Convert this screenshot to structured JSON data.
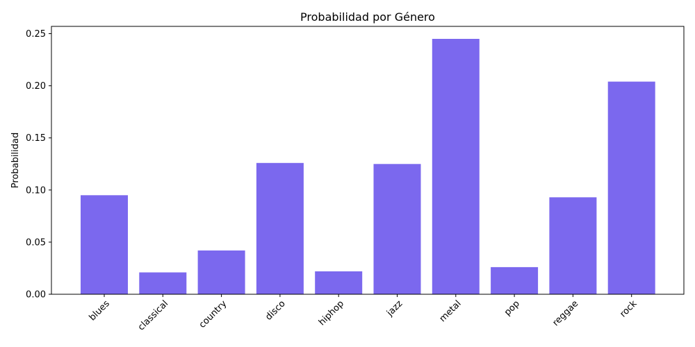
{
  "chart_data": {
    "type": "bar",
    "title": "Probabilidad por Género",
    "xlabel": "",
    "ylabel": "Probabilidad",
    "categories": [
      "blues",
      "classical",
      "country",
      "disco",
      "hiphop",
      "jazz",
      "metal",
      "pop",
      "reggae",
      "rock"
    ],
    "values": [
      0.095,
      0.021,
      0.042,
      0.126,
      0.022,
      0.125,
      0.245,
      0.026,
      0.093,
      0.204
    ],
    "ylim": [
      0,
      0.257
    ],
    "yticks": [
      "0.00",
      "0.05",
      "0.10",
      "0.15",
      "0.20",
      "0.25"
    ],
    "bar_color": "#7b68ee",
    "grid": false,
    "legend": "none"
  }
}
